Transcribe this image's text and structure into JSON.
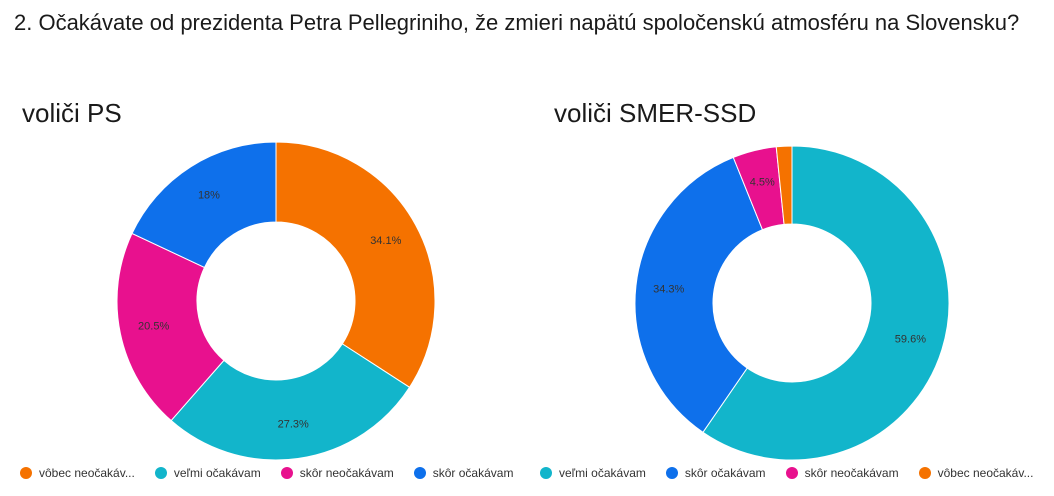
{
  "question": "2. Očakávate od prezidenta Petra Pellegriniho, že zmieri napätú spoločenskú atmosféru na Slovensku?",
  "chart_data": [
    {
      "type": "pie",
      "title": "voliči PS",
      "donut": true,
      "slices": [
        {
          "label": "vôbec neočakáv...",
          "value": 34.1,
          "display": "34.1%",
          "color": "#f57200"
        },
        {
          "label": "veľmi očakávam",
          "value": 27.3,
          "display": "27.3%",
          "color": "#12b5cb"
        },
        {
          "label": "skôr neočakávam",
          "value": 20.5,
          "display": "20.5%",
          "color": "#e8118e"
        },
        {
          "label": "skôr očakávam",
          "value": 18.0,
          "display": "18%",
          "color": "#0e70eb"
        }
      ],
      "legend_position": "bottom"
    },
    {
      "type": "pie",
      "title": "voliči SMER-SSD",
      "donut": true,
      "slices": [
        {
          "label": "veľmi očakávam",
          "value": 59.6,
          "display": "59.6%",
          "color": "#12b5cb"
        },
        {
          "label": "skôr očakávam",
          "value": 34.3,
          "display": "34.3%",
          "color": "#0e70eb"
        },
        {
          "label": "skôr neočakávam",
          "value": 4.5,
          "display": "4.5%",
          "color": "#e8118e"
        },
        {
          "label": "vôbec neočakáv...",
          "value": 1.6,
          "display": "",
          "color": "#f57200"
        }
      ],
      "legend_position": "bottom"
    }
  ]
}
